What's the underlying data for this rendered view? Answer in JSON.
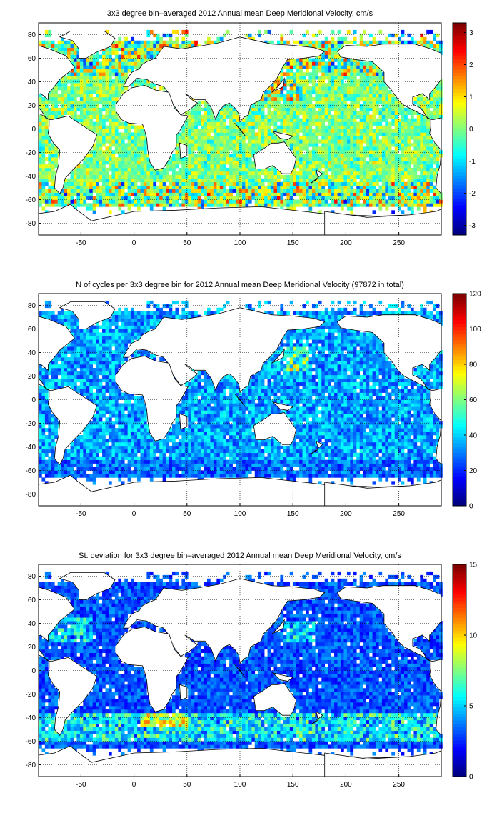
{
  "chart_data": [
    {
      "type": "heatmap",
      "title": "3x3 degree bin–averaged 2012 Annual mean Deep Meridional Velocity, cm/s",
      "xlabel": "",
      "ylabel": "",
      "x_ticks": [
        -50,
        0,
        50,
        100,
        150,
        200,
        250
      ],
      "y_ticks": [
        80,
        60,
        40,
        20,
        0,
        -20,
        -40,
        -60,
        -80
      ],
      "xlim": [
        -90,
        290
      ],
      "ylim": [
        -90,
        90
      ],
      "grid": true,
      "colormap": "jet",
      "colorbar": {
        "min": -3.3,
        "max": 3.3,
        "ticks": [
          3,
          2,
          1,
          0,
          -1,
          -2,
          -3
        ]
      },
      "bin_size_deg": 3,
      "field": "velocity"
    },
    {
      "type": "heatmap",
      "title": "N of cycles per 3x3 degree bin for 2012 Annual mean Deep Meridional Velocity (97872 in total)",
      "xlabel": "",
      "ylabel": "",
      "x_ticks": [
        -50,
        0,
        50,
        100,
        150,
        200,
        250
      ],
      "y_ticks": [
        80,
        60,
        40,
        20,
        0,
        -20,
        -40,
        -60,
        -80
      ],
      "xlim": [
        -90,
        290
      ],
      "ylim": [
        -90,
        90
      ],
      "grid": true,
      "colormap": "jet",
      "colorbar": {
        "min": 0,
        "max": 120,
        "ticks": [
          120,
          100,
          80,
          60,
          40,
          20,
          0
        ]
      },
      "bin_size_deg": 3,
      "field": "count"
    },
    {
      "type": "heatmap",
      "title": "St. deviation for 3x3 degree bin–averaged 2012 Annual mean Deep Meridional Velocity, cm/s",
      "xlabel": "",
      "ylabel": "",
      "x_ticks": [
        -50,
        0,
        50,
        100,
        150,
        200,
        250
      ],
      "y_ticks": [
        80,
        60,
        40,
        20,
        0,
        -20,
        -40,
        -60,
        -80
      ],
      "xlim": [
        -90,
        290
      ],
      "ylim": [
        -90,
        90
      ],
      "grid": true,
      "colormap": "jet",
      "colorbar": {
        "min": 0,
        "max": 15,
        "ticks": [
          15,
          10,
          5,
          0
        ]
      },
      "bin_size_deg": 3,
      "field": "stdev"
    }
  ]
}
